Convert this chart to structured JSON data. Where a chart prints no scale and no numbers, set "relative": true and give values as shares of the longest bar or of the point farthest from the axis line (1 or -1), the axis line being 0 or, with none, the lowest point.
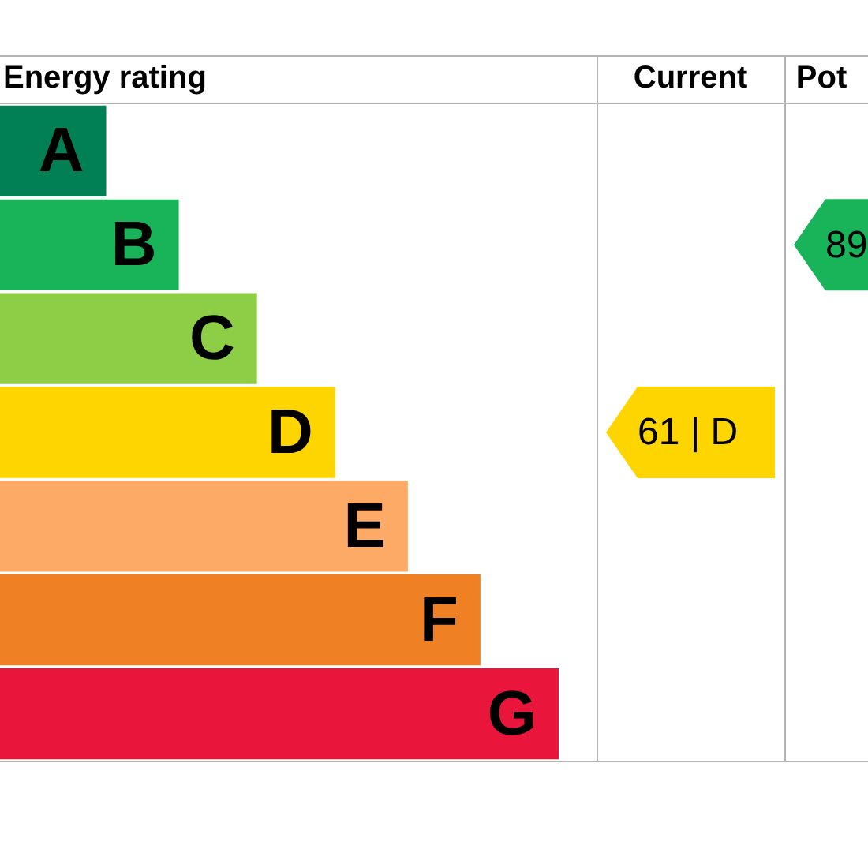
{
  "chart_data": {
    "type": "bar",
    "orientation": "horizontal",
    "relative": true,
    "title": "Energy rating",
    "categories": [
      "A",
      "B",
      "C",
      "D",
      "E",
      "F",
      "G"
    ],
    "values": [
      0.19,
      0.32,
      0.46,
      0.6,
      0.73,
      0.86,
      1
    ],
    "colors": [
      "#008054",
      "#19b459",
      "#8dce46",
      "#ffd500",
      "#fcaa65",
      "#ef8023",
      "#e9153b"
    ],
    "annotations": [
      "Current",
      "Pot",
      "61 | D",
      "89"
    ]
  }
}
